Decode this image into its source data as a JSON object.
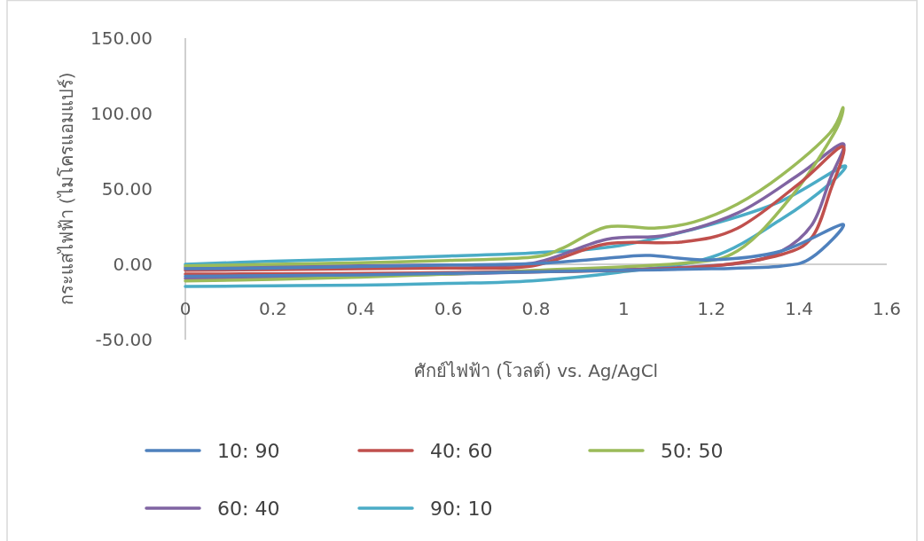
{
  "chart_data": {
    "type": "line",
    "xlabel": "ศักย์ไฟฟ้า (โวลต์) vs. Ag/AgCl",
    "ylabel": "กระแสไฟฟ้า (ไมโครแอมแปร์)",
    "xlim": [
      0,
      1.6
    ],
    "xticks": [
      0,
      0.2,
      0.4,
      0.6,
      0.8,
      1,
      1.2,
      1.4,
      1.6
    ],
    "ylim": [
      -50,
      150
    ],
    "yticks": [
      {
        "value": -50,
        "label": "-50.00"
      },
      {
        "value": 0,
        "label": "0.00"
      },
      {
        "value": 50,
        "label": "50.00"
      },
      {
        "value": 100,
        "label": "100.00"
      },
      {
        "value": 150,
        "label": "150.00"
      }
    ],
    "grid": false,
    "legend": "bottom",
    "line_style": "solid",
    "series": [
      {
        "name": "10: 90",
        "color": "#4f81bd",
        "x": [
          0,
          0.2,
          0.4,
          0.6,
          0.8,
          0.99,
          1.06,
          1.2,
          1.36,
          1.5,
          1.43,
          1.36,
          1.2,
          0.99,
          0.8,
          0.6,
          0.4,
          0.2,
          0
        ],
        "values": [
          -3,
          -2.5,
          -1.5,
          -0.5,
          0.6,
          4.7,
          5.9,
          2.9,
          8.8,
          26.5,
          4.7,
          -1.2,
          -3,
          -4,
          -5,
          -6,
          -7,
          -7.5,
          -8
        ]
      },
      {
        "name": "40: 60",
        "color": "#c0504d",
        "x": [
          0,
          0.2,
          0.4,
          0.6,
          0.79,
          0.96,
          1.13,
          1.26,
          1.4,
          1.5,
          1.47,
          1.43,
          1.36,
          1.2,
          0.99,
          0.8,
          0.6,
          0.4,
          0.2,
          0
        ],
        "values": [
          -4,
          -3.5,
          -3,
          -2.5,
          -1.2,
          13.5,
          14.7,
          24,
          53.5,
          78,
          47.6,
          18.2,
          6.5,
          -1.2,
          -4,
          -5,
          -5.5,
          -6,
          -6.3,
          -6.5
        ]
      },
      {
        "name": "50: 50",
        "color": "#9bbb59",
        "x": [
          0,
          0.2,
          0.4,
          0.6,
          0.79,
          0.86,
          0.96,
          1.07,
          1.16,
          1.26,
          1.36,
          1.47,
          1.5,
          1.48,
          1.38,
          1.26,
          1.13,
          0.8,
          0.6,
          0.4,
          0.2,
          0
        ],
        "values": [
          -1,
          0,
          1,
          2.5,
          4.7,
          10.6,
          24.7,
          24,
          28,
          40,
          59,
          87,
          104,
          87,
          44,
          9,
          0.6,
          -4,
          -6.5,
          -8.5,
          -10,
          -11
        ]
      },
      {
        "name": "60: 40",
        "color": "#8064a2",
        "x": [
          0,
          0.2,
          0.4,
          0.6,
          0.79,
          0.96,
          1.1,
          1.26,
          1.4,
          1.5,
          1.47,
          1.43,
          1.36,
          1.26,
          1.06,
          0.8,
          0.6,
          0.4,
          0.2,
          0
        ],
        "values": [
          -2,
          -1.5,
          -1,
          -0.5,
          0.6,
          16.5,
          19.4,
          34,
          59.6,
          80,
          56,
          26.5,
          8.8,
          0.6,
          -3,
          -5,
          -6.5,
          -7.5,
          -8.5,
          -9.4
        ]
      },
      {
        "name": "90: 10",
        "color": "#4bacc6",
        "x": [
          0,
          0.2,
          0.4,
          0.6,
          0.8,
          0.99,
          1.2,
          1.36,
          1.5,
          1.47,
          1.36,
          1.2,
          0.99,
          0.79,
          0.6,
          0.4,
          0.2,
          0
        ],
        "values": [
          0,
          2,
          3.5,
          5.5,
          7.6,
          12.4,
          26.5,
          42,
          65,
          53.5,
          30,
          4.7,
          -5.3,
          -11,
          -12.7,
          -13.8,
          -14.3,
          -14.7
        ]
      }
    ]
  }
}
